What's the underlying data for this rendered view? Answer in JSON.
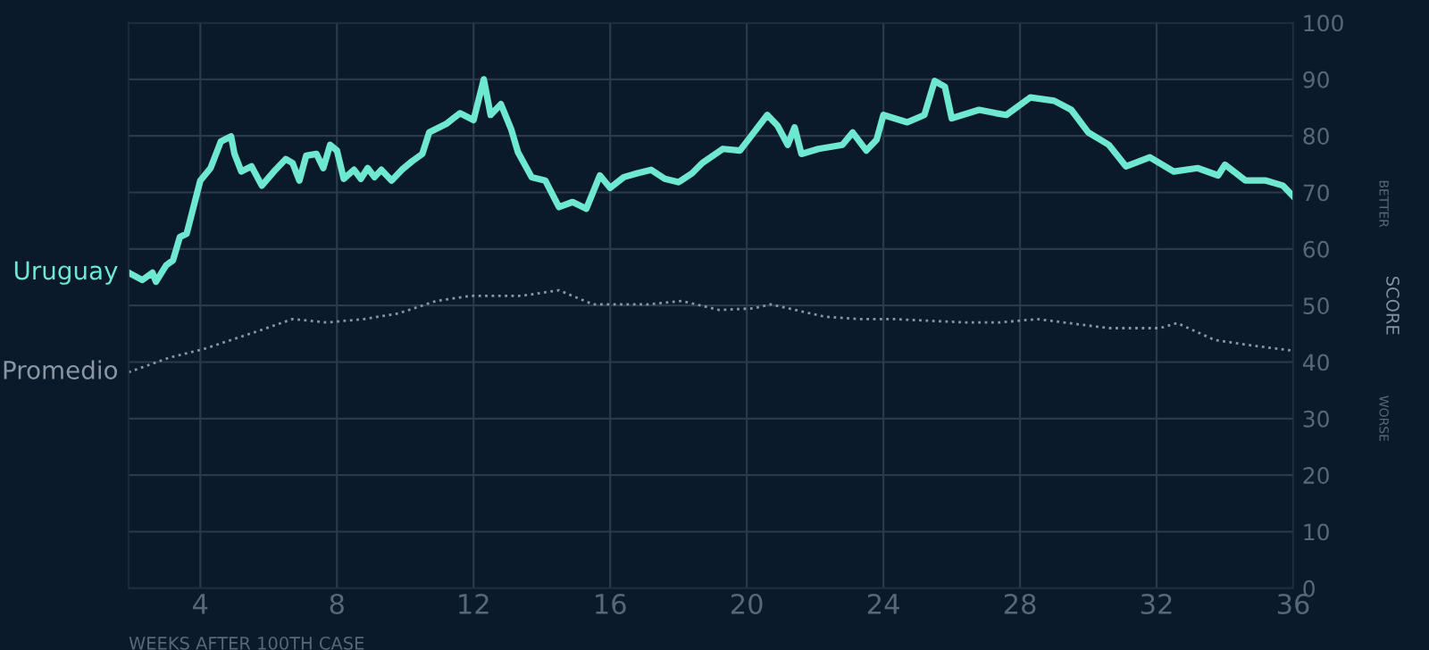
{
  "chart_data": {
    "type": "line",
    "xlabel": "WEEKS AFTER 100TH CASE",
    "ylabel": "SCORE",
    "annotations": [
      "BETTER",
      "WORSE"
    ],
    "xlim": [
      1.9,
      36
    ],
    "xticks": [
      4,
      8,
      12,
      16,
      20,
      24,
      28,
      32,
      36
    ],
    "ylim": [
      0,
      100
    ],
    "yticks": [
      0,
      10,
      20,
      30,
      40,
      50,
      60,
      70,
      80,
      90,
      100
    ],
    "grid": true,
    "line_style": "solid",
    "marker": "none",
    "series": [
      {
        "name": "Uruguay",
        "color": "#6ee8d0",
        "x": [
          1.9,
          2.3,
          2.6,
          2.7,
          3.0,
          3.2,
          3.4,
          3.6,
          3.8,
          4.0,
          4.3,
          4.6,
          4.9,
          5.0,
          5.2,
          5.5,
          5.8,
          6.2,
          6.5,
          6.7,
          6.9,
          7.1,
          7.4,
          7.6,
          7.8,
          8.0,
          8.2,
          8.5,
          8.7,
          8.9,
          9.1,
          9.3,
          9.6,
          9.9,
          10.2,
          10.5,
          10.7,
          11.2,
          11.6,
          12.0,
          12.3,
          12.5,
          12.8,
          13.1,
          13.3,
          13.7,
          14.1,
          14.5,
          14.9,
          15.3,
          15.7,
          16.0,
          16.4,
          16.8,
          17.2,
          17.6,
          18.0,
          18.4,
          18.7,
          19.3,
          19.8,
          20.6,
          20.9,
          21.2,
          21.4,
          21.6,
          22.1,
          22.8,
          23.1,
          23.5,
          23.8,
          24.0,
          24.7,
          25.2,
          25.5,
          25.8,
          26.0,
          26.8,
          27.3,
          27.6,
          28.3,
          29.0,
          29.5,
          30.0,
          30.6,
          31.1,
          31.8,
          32.5,
          33.2,
          33.8,
          34.0,
          34.6,
          35.2,
          35.7,
          36.0
        ],
        "values": [
          55.8,
          54.5,
          55.8,
          54.2,
          57.1,
          58.0,
          62.1,
          62.7,
          67.4,
          72.1,
          74.3,
          79.0,
          79.9,
          76.8,
          73.7,
          74.6,
          71.2,
          74.0,
          75.9,
          75.2,
          72.1,
          76.5,
          76.8,
          74.3,
          78.4,
          77.4,
          72.4,
          74.0,
          72.4,
          74.3,
          72.7,
          74.0,
          72.1,
          74.0,
          75.5,
          76.8,
          80.6,
          82.1,
          84.0,
          82.8,
          90.0,
          83.7,
          85.6,
          81.2,
          77.1,
          72.7,
          72.1,
          67.4,
          68.3,
          67.1,
          73.0,
          70.8,
          72.7,
          73.4,
          74.0,
          72.4,
          71.8,
          73.4,
          75.2,
          77.7,
          77.4,
          83.7,
          81.8,
          78.4,
          81.5,
          76.8,
          77.7,
          78.4,
          80.6,
          77.4,
          79.3,
          83.7,
          82.4,
          83.7,
          89.7,
          88.7,
          83.1,
          84.6,
          84.0,
          83.7,
          86.8,
          86.2,
          84.6,
          80.6,
          78.4,
          74.6,
          76.2,
          73.7,
          74.3,
          73.0,
          74.9,
          72.1,
          72.1,
          71.2,
          69.3
        ]
      },
      {
        "name": "Promedio",
        "color": "#8a96a3",
        "line_style": "dotted",
        "x": [
          1.9,
          3.1,
          4.1,
          5.7,
          6.7,
          7.7,
          8.8,
          9.8,
          10.9,
          11.9,
          13.4,
          14.5,
          15.5,
          17.1,
          18.1,
          19.2,
          20.2,
          20.7,
          22.3,
          23.3,
          24.3,
          26.4,
          27.4,
          28.5,
          30.6,
          32.1,
          32.6,
          33.7,
          34.7,
          36.0
        ],
        "values": [
          38.2,
          40.8,
          42.3,
          45.5,
          47.6,
          47.0,
          47.6,
          48.6,
          50.8,
          51.7,
          51.7,
          52.7,
          50.2,
          50.2,
          50.8,
          49.2,
          49.5,
          50.2,
          48.0,
          47.6,
          47.6,
          47.0,
          47.0,
          47.6,
          46.0,
          46.0,
          46.9,
          43.9,
          43.0,
          42.0
        ]
      }
    ]
  }
}
